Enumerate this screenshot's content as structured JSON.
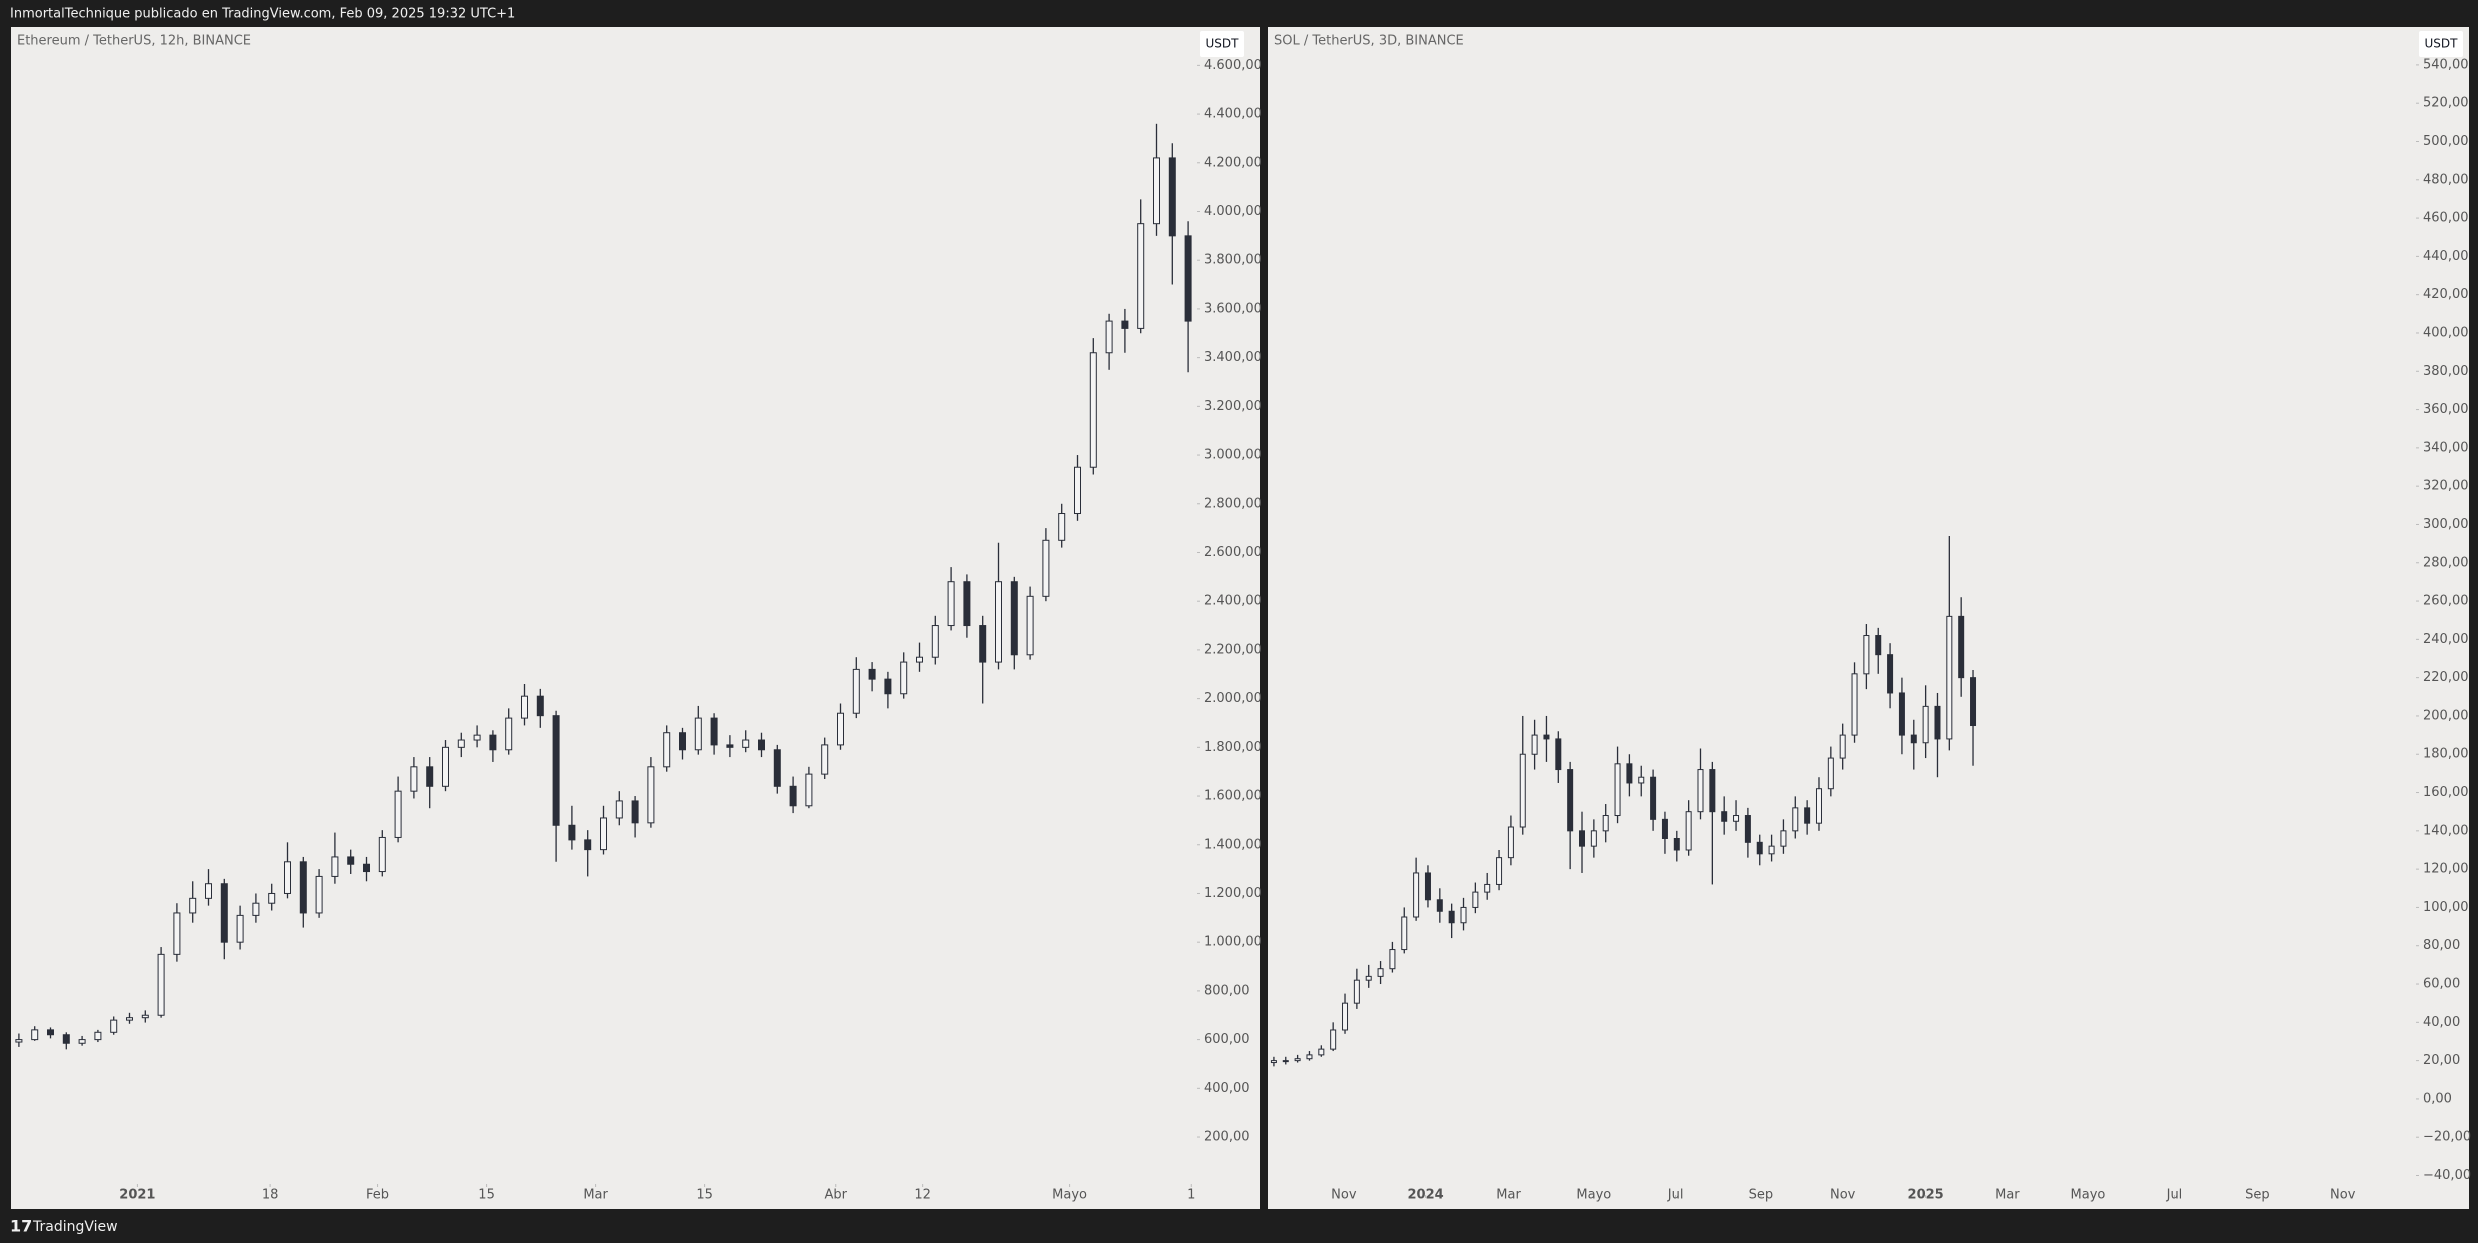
{
  "header": {
    "text": "InmortalTechnique publicado en TradingView.com, Feb 09, 2025 19:32 UTC+1"
  },
  "footer": {
    "brand": "TradingView"
  },
  "chart_data": [
    {
      "type": "candlestick",
      "title": "Ethereum / TetherUS, 12h, BINANCE",
      "currency": "USDT",
      "up_color": "#f4f4f4",
      "down_color": "#2a2e39",
      "wick_color": "#2a2e39",
      "xlim": [
        -0.5,
        74.5
      ],
      "xticks": [
        {
          "value": 7.5,
          "label": "2021"
        },
        {
          "value": 15.9,
          "label": "18"
        },
        {
          "value": 22.7,
          "label": "Feb"
        },
        {
          "value": 29.6,
          "label": "15"
        },
        {
          "value": 36.5,
          "label": "Mar"
        },
        {
          "value": 43.4,
          "label": "15"
        },
        {
          "value": 51.7,
          "label": "Abr"
        },
        {
          "value": 57.2,
          "label": "12"
        },
        {
          "value": 66.5,
          "label": "Mayo"
        },
        {
          "value": 74.2,
          "label": "1"
        }
      ],
      "ylim": [
        40,
        4700
      ],
      "yticks": [
        {
          "value": 200,
          "label": "200,00"
        },
        {
          "value": 400,
          "label": "400,00"
        },
        {
          "value": 600,
          "label": "600,00"
        },
        {
          "value": 800,
          "label": "800,00"
        },
        {
          "value": 1000,
          "label": "1.000,00"
        },
        {
          "value": 1200,
          "label": "1.200,00"
        },
        {
          "value": 1400,
          "label": "1.400,00"
        },
        {
          "value": 1600,
          "label": "1.600,00"
        },
        {
          "value": 1800,
          "label": "1.800,00"
        },
        {
          "value": 2000,
          "label": "2.000,00"
        },
        {
          "value": 2200,
          "label": "2.200,00"
        },
        {
          "value": 2400,
          "label": "2.400,00"
        },
        {
          "value": 2600,
          "label": "2.600,00"
        },
        {
          "value": 2800,
          "label": "2.800,00"
        },
        {
          "value": 3000,
          "label": "3.000,00"
        },
        {
          "value": 3200,
          "label": "3.200,00"
        },
        {
          "value": 3400,
          "label": "3.400,00"
        },
        {
          "value": 3600,
          "label": "3.600,00"
        },
        {
          "value": 3800,
          "label": "3.800,00"
        },
        {
          "value": 4000,
          "label": "4.000,00"
        },
        {
          "value": 4200,
          "label": "4.200,00"
        },
        {
          "value": 4400,
          "label": "4.400,00"
        },
        {
          "value": 4600,
          "label": "4.600,00"
        }
      ],
      "ohlc": [
        [
          590,
          625,
          570,
          600
        ],
        [
          600,
          655,
          595,
          640
        ],
        [
          640,
          650,
          605,
          620
        ],
        [
          620,
          630,
          560,
          585
        ],
        [
          585,
          615,
          575,
          600
        ],
        [
          600,
          640,
          590,
          630
        ],
        [
          630,
          695,
          620,
          680
        ],
        [
          680,
          710,
          665,
          690
        ],
        [
          690,
          720,
          670,
          700
        ],
        [
          700,
          980,
          690,
          950
        ],
        [
          950,
          1160,
          920,
          1120
        ],
        [
          1120,
          1250,
          1080,
          1180
        ],
        [
          1180,
          1300,
          1150,
          1240
        ],
        [
          1240,
          1260,
          930,
          1000
        ],
        [
          1000,
          1150,
          970,
          1110
        ],
        [
          1110,
          1200,
          1080,
          1160
        ],
        [
          1160,
          1240,
          1130,
          1200
        ],
        [
          1200,
          1410,
          1180,
          1330
        ],
        [
          1330,
          1350,
          1060,
          1120
        ],
        [
          1120,
          1300,
          1100,
          1270
        ],
        [
          1270,
          1450,
          1240,
          1350
        ],
        [
          1350,
          1380,
          1280,
          1320
        ],
        [
          1320,
          1350,
          1250,
          1290
        ],
        [
          1290,
          1460,
          1270,
          1430
        ],
        [
          1430,
          1680,
          1410,
          1620
        ],
        [
          1620,
          1760,
          1590,
          1720
        ],
        [
          1720,
          1760,
          1550,
          1640
        ],
        [
          1640,
          1830,
          1620,
          1800
        ],
        [
          1800,
          1860,
          1760,
          1830
        ],
        [
          1830,
          1890,
          1800,
          1850
        ],
        [
          1850,
          1870,
          1740,
          1790
        ],
        [
          1790,
          1960,
          1770,
          1920
        ],
        [
          1920,
          2060,
          1890,
          2010
        ],
        [
          2010,
          2040,
          1880,
          1930
        ],
        [
          1930,
          1950,
          1330,
          1480
        ],
        [
          1480,
          1560,
          1380,
          1420
        ],
        [
          1420,
          1460,
          1270,
          1380
        ],
        [
          1380,
          1560,
          1360,
          1510
        ],
        [
          1510,
          1620,
          1480,
          1580
        ],
        [
          1580,
          1600,
          1430,
          1490
        ],
        [
          1490,
          1760,
          1470,
          1720
        ],
        [
          1720,
          1890,
          1700,
          1860
        ],
        [
          1860,
          1880,
          1750,
          1790
        ],
        [
          1790,
          1970,
          1770,
          1920
        ],
        [
          1920,
          1940,
          1770,
          1810
        ],
        [
          1810,
          1850,
          1760,
          1800
        ],
        [
          1800,
          1870,
          1780,
          1830
        ],
        [
          1830,
          1860,
          1760,
          1790
        ],
        [
          1790,
          1810,
          1610,
          1640
        ],
        [
          1640,
          1680,
          1530,
          1560
        ],
        [
          1560,
          1720,
          1550,
          1690
        ],
        [
          1690,
          1840,
          1670,
          1810
        ],
        [
          1810,
          1980,
          1790,
          1940
        ],
        [
          1940,
          2170,
          1920,
          2120
        ],
        [
          2120,
          2150,
          2030,
          2080
        ],
        [
          2080,
          2110,
          1960,
          2020
        ],
        [
          2020,
          2190,
          2000,
          2150
        ],
        [
          2150,
          2230,
          2110,
          2170
        ],
        [
          2170,
          2340,
          2140,
          2300
        ],
        [
          2300,
          2540,
          2280,
          2480
        ],
        [
          2480,
          2510,
          2250,
          2300
        ],
        [
          2300,
          2340,
          1980,
          2150
        ],
        [
          2150,
          2640,
          2120,
          2480
        ],
        [
          2480,
          2500,
          2120,
          2180
        ],
        [
          2180,
          2460,
          2160,
          2420
        ],
        [
          2420,
          2700,
          2400,
          2650
        ],
        [
          2650,
          2800,
          2620,
          2760
        ],
        [
          2760,
          3000,
          2730,
          2950
        ],
        [
          2950,
          3480,
          2920,
          3420
        ],
        [
          3420,
          3580,
          3350,
          3550
        ],
        [
          3550,
          3600,
          3420,
          3520
        ],
        [
          3520,
          4050,
          3500,
          3950
        ],
        [
          3950,
          4360,
          3900,
          4220
        ],
        [
          4220,
          4280,
          3700,
          3900
        ],
        [
          3900,
          3960,
          3340,
          3550
        ]
      ]
    },
    {
      "type": "candlestick",
      "title": "SOL / TetherUS, 3D, BINANCE",
      "currency": "USDT",
      "up_color": "#f4f4f4",
      "down_color": "#2a2e39",
      "wick_color": "#2a2e39",
      "xlim": [
        -0.5,
        96.3
      ],
      "xticks": [
        {
          "value": 5.9,
          "label": "Nov"
        },
        {
          "value": 12.8,
          "label": "2024"
        },
        {
          "value": 19.8,
          "label": "Mar"
        },
        {
          "value": 27,
          "label": "Mayo"
        },
        {
          "value": 33.9,
          "label": "Jul"
        },
        {
          "value": 41.1,
          "label": "Sep"
        },
        {
          "value": 48,
          "label": "Nov"
        },
        {
          "value": 55,
          "label": "2025"
        },
        {
          "value": 61.9,
          "label": "Mar"
        },
        {
          "value": 68.7,
          "label": "Mayo"
        },
        {
          "value": 76,
          "label": "Jul"
        },
        {
          "value": 83,
          "label": "Sep"
        },
        {
          "value": 90.2,
          "label": "Nov"
        }
      ],
      "ylim": [
        -46,
        553
      ],
      "yticks": [
        {
          "value": -40,
          "label": "−40,00"
        },
        {
          "value": -20,
          "label": "−20,00"
        },
        {
          "value": 0,
          "label": "0,00"
        },
        {
          "value": 20,
          "label": "20,00"
        },
        {
          "value": 40,
          "label": "40,00"
        },
        {
          "value": 60,
          "label": "60,00"
        },
        {
          "value": 80,
          "label": "80,00"
        },
        {
          "value": 100,
          "label": "100,00"
        },
        {
          "value": 120,
          "label": "120,00"
        },
        {
          "value": 140,
          "label": "140,00"
        },
        {
          "value": 160,
          "label": "160,00"
        },
        {
          "value": 180,
          "label": "180,00"
        },
        {
          "value": 200,
          "label": "200,00"
        },
        {
          "value": 220,
          "label": "220,00"
        },
        {
          "value": 240,
          "label": "240,00"
        },
        {
          "value": 260,
          "label": "260,00"
        },
        {
          "value": 280,
          "label": "280,00"
        },
        {
          "value": 300,
          "label": "300,00"
        },
        {
          "value": 320,
          "label": "320,00"
        },
        {
          "value": 340,
          "label": "340,00"
        },
        {
          "value": 360,
          "label": "360,00"
        },
        {
          "value": 380,
          "label": "380,00"
        },
        {
          "value": 400,
          "label": "400,00"
        },
        {
          "value": 420,
          "label": "420,00"
        },
        {
          "value": 440,
          "label": "440,00"
        },
        {
          "value": 460,
          "label": "460,00"
        },
        {
          "value": 480,
          "label": "480,00"
        },
        {
          "value": 500,
          "label": "500,00"
        },
        {
          "value": 520,
          "label": "520,00"
        },
        {
          "value": 540,
          "label": "540,00"
        }
      ],
      "ohlc": [
        [
          19,
          22,
          17,
          20
        ],
        [
          20,
          22,
          18,
          20
        ],
        [
          20,
          23,
          19,
          21
        ],
        [
          21,
          25,
          20,
          23
        ],
        [
          23,
          28,
          22,
          26
        ],
        [
          26,
          40,
          25,
          36
        ],
        [
          36,
          55,
          34,
          50
        ],
        [
          50,
          68,
          47,
          62
        ],
        [
          62,
          70,
          58,
          64
        ],
        [
          64,
          72,
          60,
          68
        ],
        [
          68,
          82,
          66,
          78
        ],
        [
          78,
          100,
          76,
          95
        ],
        [
          95,
          126,
          93,
          118
        ],
        [
          118,
          122,
          100,
          104
        ],
        [
          104,
          110,
          92,
          98
        ],
        [
          98,
          102,
          84,
          92
        ],
        [
          92,
          105,
          88,
          100
        ],
        [
          100,
          113,
          97,
          108
        ],
        [
          108,
          118,
          104,
          112
        ],
        [
          112,
          130,
          109,
          126
        ],
        [
          126,
          148,
          122,
          142
        ],
        [
          142,
          200,
          138,
          180
        ],
        [
          180,
          198,
          172,
          190
        ],
        [
          190,
          200,
          176,
          188
        ],
        [
          188,
          192,
          165,
          172
        ],
        [
          172,
          176,
          120,
          140
        ],
        [
          140,
          150,
          118,
          132
        ],
        [
          132,
          146,
          126,
          140
        ],
        [
          140,
          154,
          134,
          148
        ],
        [
          148,
          184,
          144,
          175
        ],
        [
          175,
          180,
          158,
          165
        ],
        [
          165,
          174,
          158,
          168
        ],
        [
          168,
          172,
          140,
          146
        ],
        [
          146,
          150,
          128,
          136
        ],
        [
          136,
          140,
          124,
          130
        ],
        [
          130,
          156,
          127,
          150
        ],
        [
          150,
          183,
          146,
          172
        ],
        [
          172,
          176,
          112,
          150
        ],
        [
          150,
          158,
          138,
          145
        ],
        [
          145,
          156,
          140,
          148
        ],
        [
          148,
          152,
          126,
          134
        ],
        [
          134,
          138,
          122,
          128
        ],
        [
          128,
          138,
          124,
          132
        ],
        [
          132,
          146,
          128,
          140
        ],
        [
          140,
          158,
          136,
          152
        ],
        [
          152,
          156,
          138,
          144
        ],
        [
          144,
          168,
          140,
          162
        ],
        [
          162,
          184,
          158,
          178
        ],
        [
          178,
          196,
          172,
          190
        ],
        [
          190,
          228,
          186,
          222
        ],
        [
          222,
          248,
          214,
          242
        ],
        [
          242,
          246,
          222,
          232
        ],
        [
          232,
          238,
          204,
          212
        ],
        [
          212,
          220,
          180,
          190
        ],
        [
          190,
          198,
          172,
          186
        ],
        [
          186,
          216,
          178,
          205
        ],
        [
          205,
          212,
          168,
          188
        ],
        [
          188,
          294,
          182,
          252
        ],
        [
          252,
          262,
          210,
          220
        ],
        [
          220,
          224,
          174,
          195
        ]
      ]
    }
  ]
}
